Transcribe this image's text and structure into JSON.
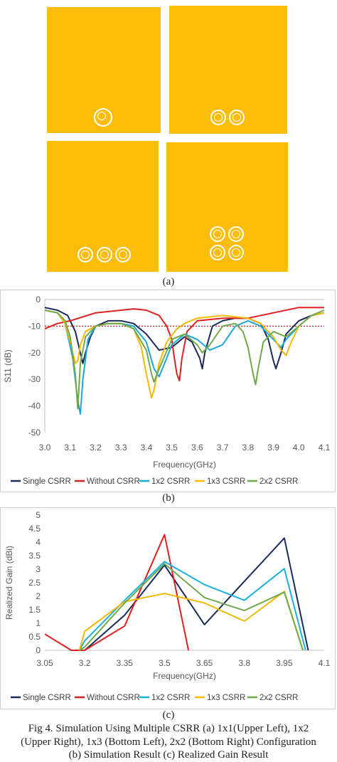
{
  "panel_a": {
    "label": "(a)",
    "colors": {
      "patch": "#fcbd08",
      "ring": "#ffffff"
    }
  },
  "panel_b": {
    "label": "(b)"
  },
  "panel_c": {
    "label": "(c)"
  },
  "caption": {
    "line1": "Fig 4. Simulation Using Multiple CSRR (a) 1x1(Upper Left), 1x2",
    "line2": "(Upper Right), 1x3 (Bottom Left), 2x2 (Bottom Right) Configuration",
    "line3": "(b) Simulation Result (c) Realized Gain Result"
  },
  "chart_data": [
    {
      "type": "line",
      "xlabel": "Frequency(GHz)",
      "ylabel": "S11 (dB)",
      "xlim": [
        3.0,
        4.1
      ],
      "ylim": [
        -50,
        0
      ],
      "xticks": [
        "3.0",
        "3.1",
        "3.2",
        "3.3",
        "3.4",
        "3.5",
        "3.6",
        "3.7",
        "3.8",
        "3.9",
        "4.0",
        "4.1"
      ],
      "yticks": [
        "0",
        "-10",
        "-20",
        "-30",
        "-40",
        "-50"
      ],
      "grid": false,
      "legend_position": "bottom",
      "reference_line": {
        "y": -10,
        "style": "dotted",
        "color": "#e02020"
      },
      "series": [
        {
          "name": "Single CSRR",
          "color": "#1a2a5a",
          "x": [
            3.0,
            3.05,
            3.09,
            3.12,
            3.14,
            3.15,
            3.16,
            3.18,
            3.2,
            3.25,
            3.3,
            3.35,
            3.4,
            3.45,
            3.5,
            3.55,
            3.58,
            3.61,
            3.62,
            3.63,
            3.66,
            3.7,
            3.75,
            3.8,
            3.85,
            3.88,
            3.9,
            3.91,
            3.93,
            3.95,
            4.0,
            4.05,
            4.1
          ],
          "y": [
            -3,
            -4,
            -6,
            -12,
            -20,
            -24,
            -20,
            -14,
            -10,
            -8,
            -8,
            -9,
            -13,
            -19,
            -18,
            -14,
            -16,
            -22,
            -26,
            -20,
            -10,
            -8,
            -7,
            -7,
            -9,
            -15,
            -23,
            -26,
            -20,
            -13,
            -8,
            -6,
            -5
          ]
        },
        {
          "name": "Without CSRR",
          "color": "#e02020",
          "x": [
            3.0,
            3.05,
            3.1,
            3.2,
            3.3,
            3.35,
            3.4,
            3.45,
            3.48,
            3.5,
            3.51,
            3.52,
            3.53,
            3.54,
            3.56,
            3.6,
            3.7,
            3.8,
            3.9,
            4.0,
            4.1
          ],
          "y": [
            -11,
            -9,
            -8,
            -5,
            -4,
            -3.5,
            -4,
            -6,
            -10,
            -15,
            -22,
            -28,
            -30.5,
            -22,
            -12,
            -8,
            -7,
            -7,
            -5,
            -3,
            -3
          ]
        },
        {
          "name": "1x2 CSRR",
          "color": "#1aa7dc",
          "x": [
            3.0,
            3.05,
            3.08,
            3.11,
            3.13,
            3.14,
            3.15,
            3.17,
            3.2,
            3.25,
            3.3,
            3.35,
            3.4,
            3.43,
            3.45,
            3.48,
            3.5,
            3.55,
            3.6,
            3.65,
            3.7,
            3.75,
            3.8,
            3.85,
            3.9,
            3.93,
            3.95,
            4.0,
            4.05,
            4.1
          ],
          "y": [
            -4,
            -5,
            -9,
            -22,
            -38,
            -43,
            -30,
            -15,
            -10,
            -9,
            -9,
            -10,
            -16,
            -26,
            -29,
            -22,
            -17,
            -13,
            -15,
            -19,
            -17,
            -10,
            -8,
            -10,
            -15,
            -18,
            -15,
            -10,
            -6,
            -5
          ]
        },
        {
          "name": "1x3 CSRR",
          "color": "#f5b800",
          "x": [
            3.0,
            3.05,
            3.08,
            3.1,
            3.12,
            3.13,
            3.14,
            3.16,
            3.2,
            3.25,
            3.3,
            3.35,
            3.38,
            3.4,
            3.42,
            3.43,
            3.45,
            3.48,
            3.52,
            3.55,
            3.6,
            3.7,
            3.8,
            3.85,
            3.9,
            3.93,
            3.95,
            3.97,
            4.0,
            4.05,
            4.1
          ],
          "y": [
            -4,
            -5,
            -9,
            -16,
            -24,
            -23,
            -17,
            -12,
            -10,
            -9,
            -9,
            -11,
            -18,
            -28,
            -37,
            -34,
            -24,
            -16,
            -11,
            -9,
            -7,
            -6,
            -7,
            -9,
            -14,
            -19,
            -21,
            -16,
            -10,
            -6,
            -5
          ]
        },
        {
          "name": "2x2 CSRR",
          "color": "#70a84a",
          "x": [
            3.0,
            3.05,
            3.08,
            3.1,
            3.12,
            3.13,
            3.14,
            3.16,
            3.2,
            3.25,
            3.3,
            3.35,
            3.4,
            3.42,
            3.43,
            3.45,
            3.5,
            3.55,
            3.6,
            3.62,
            3.65,
            3.7,
            3.75,
            3.78,
            3.8,
            3.82,
            3.83,
            3.84,
            3.86,
            3.9,
            3.95,
            4.0,
            4.05,
            4.1
          ],
          "y": [
            -4,
            -5,
            -8,
            -14,
            -28,
            -41,
            -24,
            -14,
            -10,
            -9,
            -9,
            -11,
            -19,
            -28,
            -31,
            -26,
            -15,
            -13,
            -17,
            -20,
            -17,
            -10,
            -9,
            -12,
            -18,
            -28,
            -32,
            -26,
            -16,
            -12,
            -14,
            -10,
            -6,
            -4
          ]
        }
      ],
      "legend": [
        "Single CSRR",
        "Without CSRR",
        "1x2 CSRR",
        "1x3 CSRR",
        "2x2 CSRR"
      ]
    },
    {
      "type": "line",
      "xlabel": "Frequency(GHz)",
      "ylabel": "Realized Gain (dBi)",
      "xlim": [
        3.05,
        4.1
      ],
      "ylim": [
        0,
        5
      ],
      "xticks": [
        "3.05",
        "3.2",
        "3.35",
        "3.5",
        "3.65",
        "3.8",
        "3.95",
        "4.1"
      ],
      "yticks": [
        "5",
        "4.5",
        "4",
        "3.5",
        "3",
        "2.5",
        "2",
        "1.5",
        "1",
        "0.5",
        "0"
      ],
      "grid": false,
      "legend_position": "bottom",
      "series": [
        {
          "name": "Single CSRR",
          "color": "#1a2a5a",
          "x": [
            3.2,
            3.35,
            3.5,
            3.65,
            3.8,
            3.95,
            4.04
          ],
          "y": [
            0,
            1.3,
            3.15,
            0.95,
            2.55,
            4.15,
            0
          ]
        },
        {
          "name": "Without CSRR",
          "color": "#e02020",
          "x": [
            3.05,
            3.15,
            3.2,
            3.35,
            3.5,
            3.59
          ],
          "y": [
            0.6,
            0,
            0,
            0.9,
            4.28,
            0
          ]
        },
        {
          "name": "1x2 CSRR",
          "color": "#1ab0e0",
          "x": [
            3.18,
            3.2,
            3.35,
            3.5,
            3.65,
            3.8,
            3.95,
            4.03
          ],
          "y": [
            0,
            0.35,
            1.85,
            3.28,
            2.43,
            1.85,
            3.02,
            0
          ]
        },
        {
          "name": "1x3 CSRR",
          "color": "#f5b800",
          "x": [
            3.18,
            3.2,
            3.35,
            3.5,
            3.65,
            3.8,
            3.95,
            4.02
          ],
          "y": [
            0,
            0.7,
            1.8,
            2.1,
            1.75,
            1.08,
            2.18,
            0
          ]
        },
        {
          "name": "2x2 CSRR",
          "color": "#70a84a",
          "x": [
            3.18,
            3.2,
            3.35,
            3.5,
            3.65,
            3.8,
            3.95,
            4.02
          ],
          "y": [
            0,
            0.12,
            1.75,
            3.2,
            1.95,
            1.47,
            2.15,
            0
          ]
        }
      ],
      "legend": [
        "Single CSRR",
        "Without CSRR",
        "1x2 CSRR",
        "1x3 CSRR",
        "2x2 CSRR"
      ]
    }
  ]
}
